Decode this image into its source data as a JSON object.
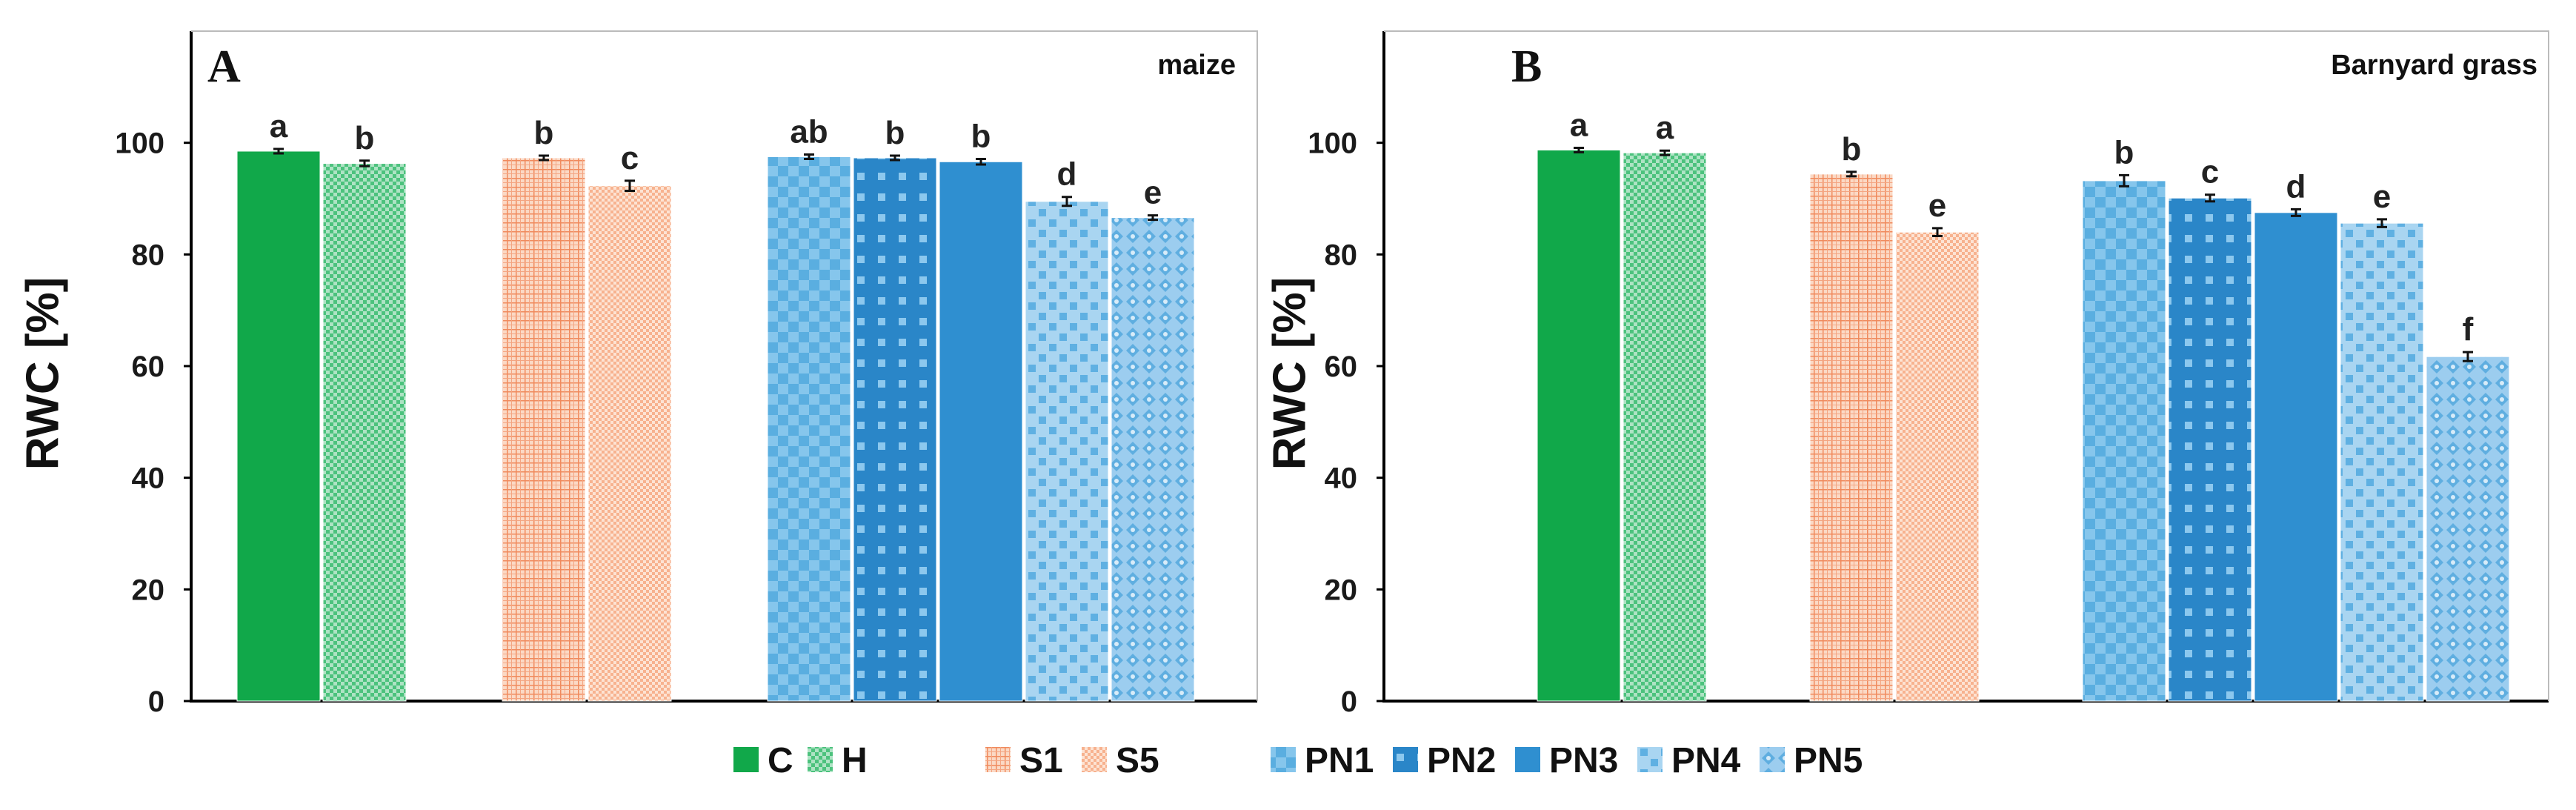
{
  "colors": {
    "green": "#11a84a",
    "orange": "#f4a582",
    "blue": "#2f8fd0",
    "lightblue": "#58b1e2",
    "axis": "#000000",
    "errorbar": "#111111"
  },
  "legend": [
    {
      "label": "C",
      "pattern": "solid-green"
    },
    {
      "label": "H",
      "pattern": "check-green"
    },
    {
      "label": "S1",
      "pattern": "grid-orange"
    },
    {
      "label": "S5",
      "pattern": "fine-orange"
    },
    {
      "label": "PN1",
      "pattern": "checker-blue"
    },
    {
      "label": "PN2",
      "pattern": "dots-blue"
    },
    {
      "label": "PN3",
      "pattern": "solid-blue"
    },
    {
      "label": "PN4",
      "pattern": "dots-light"
    },
    {
      "label": "PN5",
      "pattern": "diamond-light"
    }
  ],
  "chart_data": [
    {
      "type": "bar",
      "panel": "A",
      "title": "maize",
      "ylabel": "RWC [%]",
      "ylim": [
        0,
        120
      ],
      "yticks": [
        0,
        20,
        40,
        60,
        80,
        100
      ],
      "groups": [
        [
          "C",
          "H"
        ],
        [
          "S1",
          "S5"
        ],
        [
          "PN1",
          "PN2",
          "PN3",
          "PN4",
          "PN5"
        ]
      ],
      "categories": [
        "C",
        "H",
        "S1",
        "S5",
        "PN1",
        "PN2",
        "PN3",
        "PN4",
        "PN5"
      ],
      "values": [
        98.5,
        96.3,
        97.3,
        92.3,
        97.5,
        97.3,
        96.6,
        89.5,
        86.6
      ],
      "errors": [
        0.4,
        0.5,
        0.4,
        0.9,
        0.4,
        0.4,
        0.5,
        0.8,
        0.4
      ],
      "labels": [
        "a",
        "b",
        "b",
        "c",
        "ab",
        "b",
        "b",
        "d",
        "e"
      ]
    },
    {
      "type": "bar",
      "panel": "B",
      "title": "Barnyard grass",
      "ylabel": "RWC [%]",
      "ylim": [
        0,
        120
      ],
      "yticks": [
        0,
        20,
        40,
        60,
        80,
        100
      ],
      "groups": [
        [
          "C",
          "H"
        ],
        [
          "S1",
          "S5"
        ],
        [
          "PN1",
          "PN2",
          "PN3",
          "PN4",
          "PN5"
        ]
      ],
      "categories": [
        "C",
        "H",
        "S1",
        "S5",
        "PN1",
        "PN2",
        "PN3",
        "PN4",
        "PN5"
      ],
      "values": [
        98.7,
        98.2,
        94.4,
        84.0,
        93.2,
        90.1,
        87.5,
        85.6,
        61.7
      ],
      "errors": [
        0.4,
        0.4,
        0.4,
        0.7,
        1.0,
        0.6,
        0.6,
        0.7,
        0.8
      ],
      "labels": [
        "a",
        "a",
        "b",
        "e",
        "b",
        "c",
        "d",
        "e",
        "f"
      ]
    }
  ]
}
